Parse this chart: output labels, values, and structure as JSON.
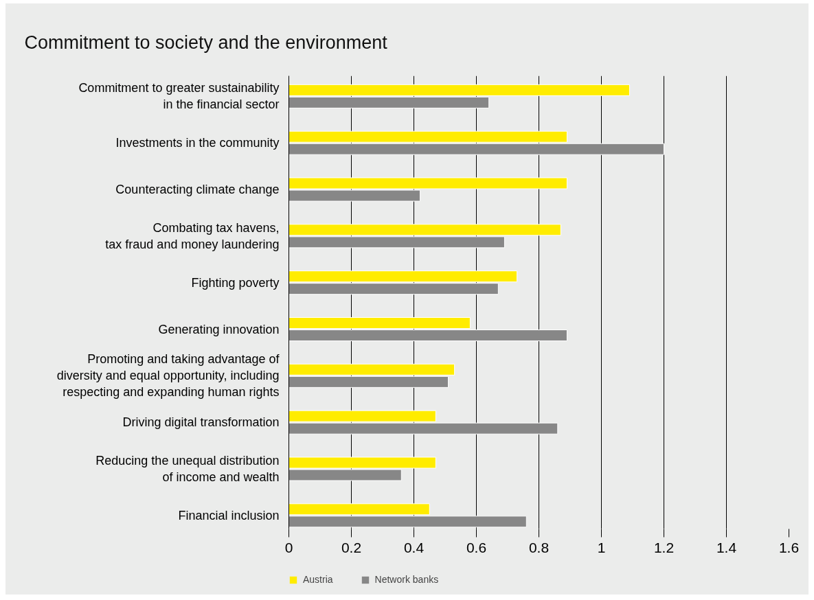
{
  "chart_data": {
    "type": "bar",
    "orientation": "horizontal",
    "title": "Commitment to society and the environment",
    "categories": [
      "Commitment to greater sustainability\nin the financial sector",
      "Investments in the community",
      "Counteracting climate change",
      "Combating tax havens,\ntax fraud and money laundering",
      "Fighting poverty",
      "Generating innovation",
      "Promoting and taking advantage of\ndiversity and equal opportunity, including\nrespecting and expanding human rights",
      "Driving digital transformation",
      "Reducing the unequal distribution\nof income and wealth",
      "Financial inclusion"
    ],
    "series": [
      {
        "name": "Austria",
        "color": "#ffec00",
        "values": [
          1.09,
          0.89,
          0.89,
          0.87,
          0.73,
          0.58,
          0.53,
          0.47,
          0.47,
          0.45
        ]
      },
      {
        "name": "Network banks",
        "color": "#878787",
        "values": [
          0.64,
          1.2,
          0.42,
          0.69,
          0.67,
          0.89,
          0.51,
          0.86,
          0.36,
          0.76
        ]
      }
    ],
    "xlim": [
      0,
      1.6
    ],
    "xticks": [
      0,
      0.2,
      0.4,
      0.6,
      0.8,
      1,
      1.2,
      1.4,
      1.6
    ],
    "grid": "x",
    "legend": "bottom"
  }
}
